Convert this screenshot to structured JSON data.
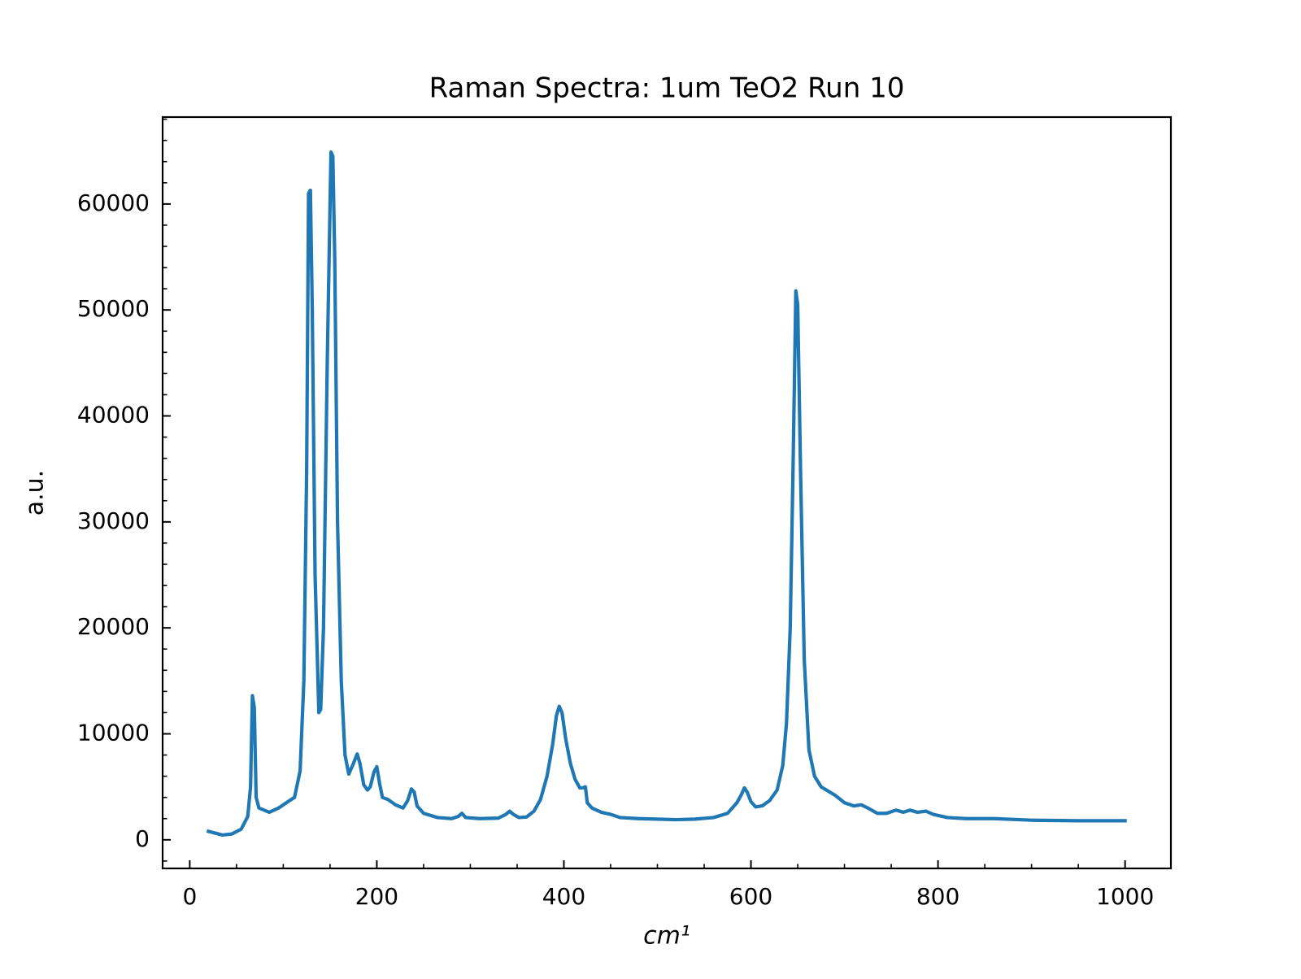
{
  "chart_data": {
    "type": "line",
    "title": "Raman Spectra: 1um TeO2 Run 10",
    "xlabel": "cm¹",
    "ylabel": "a.u.",
    "color": "#1f77b4",
    "xlim": [
      -29,
      1049
    ],
    "ylim": [
      -2700,
      68200
    ],
    "xticks": [
      0,
      200,
      400,
      600,
      800,
      1000
    ],
    "yticks": [
      0,
      10000,
      20000,
      30000,
      40000,
      50000,
      60000
    ],
    "minor_xticks": [
      50,
      100,
      150,
      250,
      300,
      350,
      450,
      500,
      550,
      650,
      700,
      750,
      850,
      900,
      950
    ],
    "minor_yticks": [
      -2000,
      2000,
      4000,
      6000,
      8000,
      12000,
      14000,
      16000,
      18000,
      22000,
      24000,
      26000,
      28000,
      32000,
      34000,
      36000,
      38000,
      42000,
      44000,
      46000,
      48000,
      52000,
      54000,
      56000,
      58000,
      62000,
      64000,
      66000,
      68000
    ],
    "x": [
      20,
      35,
      45,
      55,
      62,
      65,
      67,
      69,
      71,
      74,
      85,
      95,
      105,
      112,
      118,
      122,
      125,
      127,
      129,
      131,
      134,
      138,
      140,
      143,
      147,
      151,
      153,
      155,
      158,
      162,
      166,
      170,
      175,
      179,
      182,
      186,
      190,
      193,
      197,
      200,
      203,
      206,
      212,
      220,
      228,
      233,
      237,
      240,
      243,
      250,
      265,
      280,
      287,
      291,
      295,
      310,
      330,
      338,
      342,
      346,
      352,
      360,
      368,
      375,
      382,
      388,
      392,
      395,
      398,
      402,
      407,
      412,
      417,
      420,
      423,
      425,
      430,
      440,
      450,
      460,
      480,
      500,
      520,
      540,
      560,
      575,
      585,
      590,
      593,
      596,
      600,
      605,
      612,
      620,
      628,
      634,
      638,
      642,
      645,
      648,
      650,
      653,
      657,
      662,
      668,
      675,
      690,
      700,
      710,
      718,
      725,
      735,
      745,
      755,
      763,
      770,
      778,
      787,
      795,
      810,
      830,
      860,
      900,
      950,
      980,
      1000
    ],
    "values": [
      800,
      450,
      550,
      1000,
      2200,
      5000,
      13600,
      12500,
      4000,
      3000,
      2600,
      3000,
      3600,
      4000,
      6500,
      15000,
      35000,
      61000,
      61300,
      50000,
      25000,
      12000,
      12300,
      20000,
      45000,
      64900,
      64500,
      55000,
      30000,
      15000,
      8000,
      6200,
      7200,
      8100,
      7200,
      5200,
      4700,
      5000,
      6400,
      6900,
      5300,
      4000,
      3800,
      3300,
      3000,
      3700,
      4800,
      4500,
      3200,
      2500,
      2100,
      2000,
      2200,
      2500,
      2100,
      2000,
      2050,
      2400,
      2700,
      2400,
      2100,
      2150,
      2700,
      3800,
      6000,
      9000,
      11700,
      12600,
      12000,
      9500,
      7200,
      5700,
      4900,
      4900,
      5000,
      3500,
      3000,
      2600,
      2400,
      2100,
      2000,
      1950,
      1900,
      1950,
      2100,
      2500,
      3500,
      4300,
      4900,
      4500,
      3600,
      3100,
      3200,
      3700,
      4700,
      7000,
      11000,
      20000,
      35000,
      51800,
      50500,
      35000,
      17000,
      8500,
      6000,
      5000,
      4200,
      3500,
      3200,
      3300,
      3000,
      2500,
      2500,
      2800,
      2600,
      2800,
      2600,
      2700,
      2400,
      2100,
      2000,
      2000,
      1850,
      1800,
      1800,
      1800
    ]
  }
}
